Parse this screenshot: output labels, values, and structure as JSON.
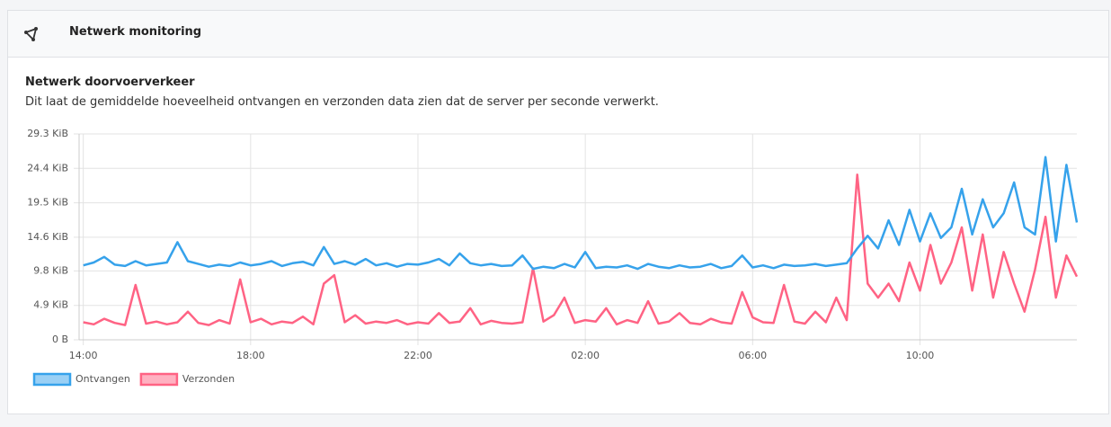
{
  "header": {
    "title": "Netwerk monitoring"
  },
  "panel": {
    "title": "Netwerk doorvoerverkeer",
    "description": "Dit laat de gemiddelde hoeveelheid ontvangen en verzonden data zien dat de server per seconde verwerkt."
  },
  "chart_data": {
    "type": "line",
    "x": [
      0,
      0.25,
      0.5,
      0.75,
      1,
      1.25,
      1.5,
      1.75,
      2,
      2.25,
      2.5,
      2.75,
      3,
      3.25,
      3.5,
      3.75,
      4,
      4.25,
      4.5,
      4.75,
      5,
      5.25,
      5.5,
      5.75,
      6,
      6.25,
      6.5,
      6.75,
      7,
      7.25,
      7.5,
      7.75,
      8,
      8.25,
      8.5,
      8.75,
      9,
      9.25,
      9.5,
      9.75,
      10,
      10.25,
      10.5,
      10.75,
      11,
      11.25,
      11.5,
      11.75,
      12,
      12.25,
      12.5,
      12.75,
      13,
      13.25,
      13.5,
      13.75,
      14,
      14.25,
      14.5,
      14.75,
      15,
      15.25,
      15.5,
      15.75,
      16,
      16.25,
      16.5,
      16.75,
      17,
      17.25,
      17.5,
      17.75,
      18,
      18.25,
      18.5,
      18.75,
      19,
      19.25,
      19.5,
      19.75,
      20,
      20.25,
      20.5,
      20.75,
      21,
      21.25,
      21.5,
      21.75,
      22,
      22.25,
      22.5,
      22.75,
      23,
      23.25,
      23.5,
      23.75
    ],
    "series": [
      {
        "name": "Ontvangen",
        "color": "#36a2eb",
        "fill": "#9ad0f5",
        "values": [
          10.6,
          11,
          11.8,
          10.7,
          10.5,
          11.2,
          10.6,
          10.8,
          11,
          13.9,
          11.2,
          10.8,
          10.4,
          10.7,
          10.5,
          11,
          10.6,
          10.8,
          11.2,
          10.5,
          10.9,
          11.1,
          10.6,
          13.2,
          10.8,
          11.2,
          10.7,
          11.5,
          10.6,
          10.9,
          10.4,
          10.8,
          10.7,
          11,
          11.5,
          10.6,
          12.3,
          10.9,
          10.6,
          10.8,
          10.5,
          10.6,
          12,
          10.1,
          10.4,
          10.2,
          10.8,
          10.3,
          12.5,
          10.2,
          10.4,
          10.3,
          10.6,
          10.1,
          10.8,
          10.4,
          10.2,
          10.6,
          10.3,
          10.4,
          10.8,
          10.2,
          10.5,
          12,
          10.3,
          10.6,
          10.2,
          10.7,
          10.5,
          10.6,
          10.8,
          10.5,
          10.7,
          10.9,
          13,
          14.8,
          13,
          17,
          13.5,
          18.5,
          14,
          18,
          14.5,
          16,
          21.5,
          15,
          20,
          16,
          18,
          22.4,
          16,
          15,
          26,
          14,
          24.9,
          16.7
        ]
      },
      {
        "name": "Verzonden",
        "color": "#ff6384",
        "fill": "#ffb1c1",
        "values": [
          2.5,
          2.2,
          3,
          2.4,
          2.1,
          7.8,
          2.3,
          2.6,
          2.2,
          2.5,
          4,
          2.4,
          2.1,
          2.8,
          2.3,
          8.6,
          2.5,
          3,
          2.2,
          2.6,
          2.4,
          3.3,
          2.2,
          8,
          9.2,
          2.5,
          3.5,
          2.3,
          2.6,
          2.4,
          2.8,
          2.2,
          2.5,
          2.3,
          3.8,
          2.4,
          2.6,
          4.5,
          2.2,
          2.7,
          2.4,
          2.3,
          2.5,
          10.2,
          2.6,
          3.5,
          6,
          2.4,
          2.8,
          2.6,
          4.5,
          2.2,
          2.8,
          2.4,
          5.5,
          2.3,
          2.6,
          3.8,
          2.4,
          2.2,
          3,
          2.5,
          2.3,
          6.8,
          3.2,
          2.5,
          2.4,
          7.8,
          2.6,
          2.3,
          4,
          2.5,
          6,
          2.8,
          23.5,
          8,
          6,
          8,
          5.5,
          11,
          7,
          13.5,
          8,
          11,
          16,
          7,
          15,
          6,
          12.5,
          8,
          4,
          10,
          17.5,
          6,
          12,
          9
        ]
      }
    ],
    "xlim": [
      -0.1,
      23.75
    ],
    "xticks": [
      {
        "value": 0,
        "label": "14:00"
      },
      {
        "value": 4,
        "label": "18:00"
      },
      {
        "value": 8,
        "label": "22:00"
      },
      {
        "value": 12,
        "label": "02:00"
      },
      {
        "value": 16,
        "label": "06:00"
      },
      {
        "value": 20,
        "label": "10:00"
      }
    ],
    "ylim": [
      0,
      29.3
    ],
    "yticks": [
      {
        "value": 0,
        "label": "0 B"
      },
      {
        "value": 4.9,
        "label": "4.9 KiB"
      },
      {
        "value": 9.8,
        "label": "9.8 KiB"
      },
      {
        "value": 14.6,
        "label": "14.6 KiB"
      },
      {
        "value": 19.5,
        "label": "19.5 KiB"
      },
      {
        "value": 24.4,
        "label": "24.4 KiB"
      },
      {
        "value": 29.3,
        "label": "29.3 KiB"
      }
    ],
    "grid": true
  }
}
